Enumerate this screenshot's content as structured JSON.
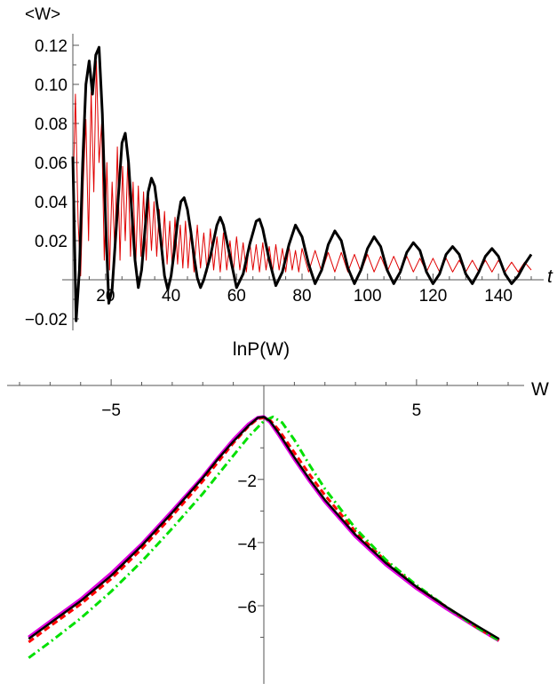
{
  "chart_data": [
    {
      "type": "line",
      "ylabel": "<W>",
      "xlabel": "t",
      "xlim": [
        10,
        150
      ],
      "ylim": [
        -0.025,
        0.125
      ],
      "x_ticks": [
        20,
        40,
        60,
        80,
        100,
        120,
        140
      ],
      "x_tick_labels": [
        "20",
        "40",
        "60",
        "80",
        "100",
        "120",
        "140"
      ],
      "y_ticks": [
        -0.02,
        0.02,
        0.04,
        0.06,
        0.08,
        0.1,
        0.12
      ],
      "y_tick_labels": [
        "−0.02",
        "0.02",
        "0.04",
        "0.06",
        "0.08",
        "0.10",
        "0.12"
      ],
      "grid": false,
      "series": [
        {
          "color": "#000000",
          "style": "solid-thick",
          "x": [
            10,
            11,
            12,
            13,
            14,
            15,
            16,
            17,
            18,
            19,
            20,
            21,
            22,
            23,
            24,
            25,
            26,
            27,
            28,
            29,
            30,
            31,
            32,
            33,
            34,
            35,
            36,
            37,
            38,
            39,
            40,
            41,
            42,
            43,
            44,
            45,
            46,
            47,
            48,
            49,
            50,
            52,
            54,
            55,
            56,
            58,
            60,
            62,
            64,
            66,
            67,
            68,
            70,
            72,
            74,
            76,
            78,
            80,
            82,
            84,
            86,
            88,
            90,
            92,
            94,
            96,
            98,
            100,
            102,
            104,
            106,
            108,
            110,
            112,
            114,
            116,
            118,
            120,
            122,
            124,
            126,
            128,
            130,
            132,
            134,
            136,
            138,
            140,
            142,
            144,
            146,
            148,
            150
          ],
          "y": [
            0.063,
            -0.021,
            0.005,
            0.06,
            0.1,
            0.112,
            0.095,
            0.115,
            0.119,
            0.085,
            0.03,
            -0.012,
            -0.005,
            0.02,
            0.045,
            0.07,
            0.075,
            0.06,
            0.035,
            0.01,
            -0.004,
            0.005,
            0.025,
            0.045,
            0.052,
            0.048,
            0.035,
            0.018,
            0.002,
            -0.005,
            0.002,
            0.015,
            0.03,
            0.04,
            0.042,
            0.036,
            0.025,
            0.012,
            0.001,
            -0.004,
            0.0,
            0.012,
            0.028,
            0.032,
            0.028,
            0.012,
            -0.004,
            0.003,
            0.018,
            0.03,
            0.031,
            0.026,
            0.01,
            -0.003,
            0.004,
            0.018,
            0.028,
            0.022,
            0.008,
            -0.002,
            0.005,
            0.018,
            0.025,
            0.02,
            0.006,
            -0.002,
            0.005,
            0.016,
            0.022,
            0.017,
            0.005,
            -0.002,
            0.004,
            0.014,
            0.019,
            0.015,
            0.004,
            -0.002,
            0.003,
            0.013,
            0.017,
            0.013,
            0.003,
            -0.002,
            0.004,
            0.012,
            0.016,
            0.012,
            0.003,
            -0.002,
            0.002,
            0.008,
            0.013
          ]
        },
        {
          "color": "#e00000",
          "style": "solid-thin",
          "x": [
            10,
            10.8,
            11.6,
            12.4,
            13.2,
            14.0,
            14.8,
            15.6,
            16.4,
            17.2,
            18.0,
            18.8,
            19.6,
            20.4,
            21.2,
            22.0,
            22.8,
            23.6,
            24.4,
            25.2,
            26.0,
            26.8,
            27.6,
            28.4,
            29.2,
            30.0,
            30.8,
            31.6,
            32.4,
            33.2,
            34.0,
            34.8,
            35.6,
            36.4,
            37.2,
            38.0,
            38.8,
            39.6,
            40.4,
            41.2,
            42.0,
            42.8,
            43.6,
            44.4,
            45.2,
            46.0,
            47.0,
            48.0,
            49.0,
            50.0,
            51.0,
            52.0,
            53.0,
            54.0,
            55.0,
            56.0,
            57.0,
            58.0,
            59.0,
            60.0,
            61.0,
            62.0,
            63.0,
            64.0,
            65.0,
            66.0,
            67.0,
            68.0,
            69.0,
            70.0,
            71.0,
            72.0,
            73.0,
            74.0,
            75.0,
            76.0,
            77.0,
            78.0,
            79.0,
            80.0,
            82.0,
            84.0,
            86.0,
            88.0,
            90.0,
            92.0,
            94.0,
            96.0,
            98.0,
            100.0,
            102.0,
            104.0,
            106.0,
            108.0,
            110.0,
            112.0,
            114.0,
            116.0,
            118.0,
            120.0,
            122.0,
            124.0,
            126.0,
            128.0,
            130.0,
            132.0,
            134.0,
            136.0,
            138.0,
            140.0,
            142.0,
            144.0,
            146.0,
            148.0,
            150.0
          ],
          "y": [
            0.04,
            0.095,
            0.03,
            0.002,
            0.05,
            0.082,
            0.02,
            0.096,
            0.045,
            0.112,
            0.06,
            0.08,
            0.01,
            0.06,
            0.005,
            0.05,
            0.015,
            0.068,
            0.01,
            0.058,
            0.02,
            0.062,
            0.012,
            0.05,
            0.008,
            0.048,
            0.012,
            0.045,
            0.01,
            0.042,
            0.015,
            0.04,
            0.012,
            0.036,
            0.01,
            0.035,
            0.008,
            0.03,
            0.006,
            0.032,
            0.008,
            0.028,
            0.006,
            0.03,
            0.006,
            0.026,
            0.004,
            0.028,
            0.006,
            0.024,
            0.004,
            0.026,
            0.005,
            0.022,
            0.004,
            0.024,
            0.005,
            0.02,
            0.004,
            0.022,
            0.005,
            0.019,
            0.004,
            0.02,
            0.005,
            0.018,
            0.004,
            0.019,
            0.005,
            0.017,
            0.004,
            0.018,
            0.005,
            0.016,
            0.004,
            0.017,
            0.005,
            0.015,
            0.004,
            0.016,
            0.004,
            0.015,
            0.004,
            0.014,
            0.004,
            0.014,
            0.004,
            0.013,
            0.004,
            0.013,
            0.004,
            0.012,
            0.004,
            0.012,
            0.004,
            0.012,
            0.004,
            0.011,
            0.004,
            0.011,
            0.004,
            0.011,
            0.004,
            0.01,
            0.004,
            0.01,
            0.004,
            0.01,
            0.004,
            0.01,
            0.004,
            0.009,
            0.004,
            0.009,
            0.005
          ]
        }
      ]
    },
    {
      "type": "line",
      "title": "lnP(W)",
      "xlabel": "W",
      "xlim": [
        -8,
        8
      ],
      "ylim": [
        -7.8,
        0.3
      ],
      "x_ticks": [
        -5,
        5
      ],
      "x_tick_labels": [
        "−5",
        "5"
      ],
      "y_ticks": [
        -2,
        -4,
        -6
      ],
      "y_tick_labels": [
        "−2",
        "−4",
        "−6"
      ],
      "grid": false,
      "series": [
        {
          "color": "#000000",
          "style": "solid",
          "x": [
            -7.7,
            -7,
            -6,
            -5,
            -4,
            -3,
            -2,
            -1.5,
            -1,
            -0.5,
            -0.2,
            0,
            0.2,
            0.5,
            1,
            1.5,
            2,
            3,
            4,
            5,
            6,
            7,
            7.7
          ],
          "y": [
            -7.05,
            -6.55,
            -5.85,
            -5.05,
            -4.1,
            -3.05,
            -1.95,
            -1.35,
            -0.8,
            -0.3,
            -0.05,
            -0.02,
            -0.15,
            -0.55,
            -1.3,
            -2.0,
            -2.65,
            -3.75,
            -4.65,
            -5.4,
            -6.05,
            -6.65,
            -7.05
          ]
        },
        {
          "color": "#ff0000",
          "style": "dashed",
          "x": [
            -7.7,
            -7,
            -6,
            -5,
            -4,
            -3,
            -2,
            -1.5,
            -1,
            -0.5,
            -0.2,
            0,
            0.2,
            0.5,
            1,
            1.5,
            2,
            3,
            4,
            5,
            6,
            7,
            7.7
          ],
          "y": [
            -7.15,
            -6.65,
            -5.95,
            -5.15,
            -4.2,
            -3.15,
            -2.05,
            -1.45,
            -0.85,
            -0.32,
            -0.08,
            -0.05,
            -0.12,
            -0.45,
            -1.15,
            -1.85,
            -2.5,
            -3.65,
            -4.6,
            -5.4,
            -6.05,
            -6.7,
            -7.1
          ]
        },
        {
          "color": "#00e000",
          "style": "dash-dot",
          "x": [
            -7.7,
            -7,
            -6,
            -5,
            -4,
            -3,
            -2,
            -1.5,
            -1,
            -0.5,
            0,
            0.3,
            0.6,
            1,
            1.5,
            2,
            3,
            4,
            5,
            6,
            7,
            7.7
          ],
          "y": [
            -7.65,
            -7.15,
            -6.4,
            -5.55,
            -4.6,
            -3.55,
            -2.45,
            -1.85,
            -1.25,
            -0.65,
            -0.15,
            -0.02,
            -0.2,
            -0.75,
            -1.55,
            -2.3,
            -3.55,
            -4.55,
            -5.35,
            -6.05,
            -6.7,
            -7.1
          ]
        },
        {
          "color": "#e000e0",
          "style": "solid-thick",
          "x": [
            -7.7,
            -7,
            -6,
            -5,
            -4,
            -3,
            -2,
            -1.5,
            -1,
            -0.5,
            -0.2,
            0,
            0.2,
            0.5,
            1,
            1.5,
            2,
            3,
            4,
            5,
            6,
            7,
            7.7
          ],
          "y": [
            -7.0,
            -6.5,
            -5.8,
            -4.98,
            -4.05,
            -3.0,
            -1.92,
            -1.32,
            -0.75,
            -0.25,
            -0.05,
            -0.02,
            -0.18,
            -0.6,
            -1.35,
            -2.05,
            -2.7,
            -3.8,
            -4.7,
            -5.45,
            -6.1,
            -6.7,
            -7.1
          ]
        }
      ]
    }
  ]
}
